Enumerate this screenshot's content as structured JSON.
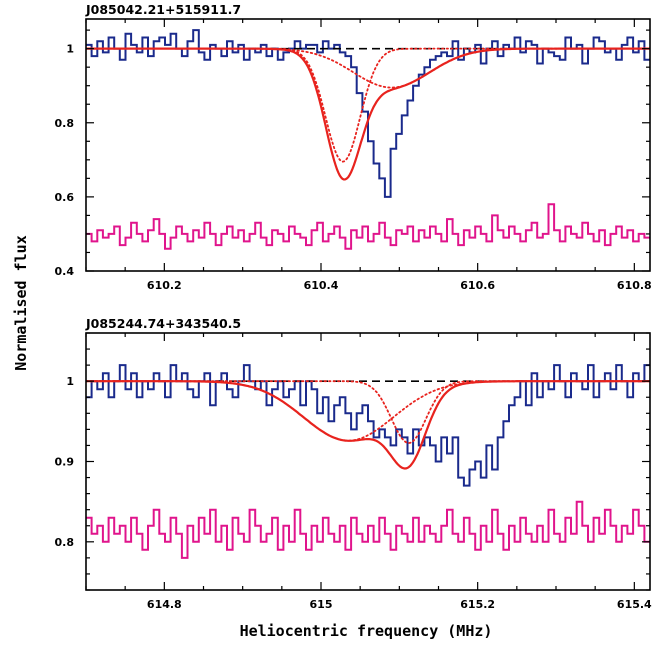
{
  "figure": {
    "ylabel": "Normalised flux",
    "xlabel": "Heliocentric frequency (MHz)"
  },
  "chart_data": [
    {
      "type": "line",
      "title": "J085042.21+515911.7",
      "xlim": [
        610.1,
        610.82
      ],
      "ylim": [
        0.4,
        1.08
      ],
      "xticks": [
        610.2,
        610.4,
        610.6,
        610.8
      ],
      "xtick_labels": [
        "610.2",
        "610.4",
        "610.6",
        "610.8"
      ],
      "yticks": [
        0.4,
        0.6,
        0.8,
        1.0
      ],
      "ytick_labels": [
        "0.4",
        "0.6",
        "0.8",
        "1"
      ],
      "continuum": 1.0,
      "colors": {
        "spectrum": "#1a2a8c",
        "residual": "#e0148c",
        "fit": "#e8231e",
        "continuum": "#000000"
      },
      "spectrum": {
        "x0": 610.1,
        "dx": 0.0072,
        "y": [
          1.01,
          0.98,
          1.02,
          0.99,
          1.03,
          1.0,
          0.97,
          1.04,
          1.01,
          0.99,
          1.03,
          0.98,
          1.02,
          1.03,
          1.01,
          1.04,
          1.0,
          0.98,
          1.02,
          1.05,
          0.99,
          0.97,
          1.01,
          1.0,
          0.98,
          1.02,
          0.99,
          1.01,
          0.97,
          1.0,
          0.99,
          1.01,
          0.98,
          1.0,
          0.97,
          0.99,
          1.0,
          1.02,
          1.0,
          1.01,
          1.01,
          0.99,
          1.02,
          1.0,
          1.01,
          0.99,
          0.98,
          0.95,
          0.88,
          0.83,
          0.75,
          0.69,
          0.65,
          0.6,
          0.73,
          0.77,
          0.82,
          0.86,
          0.9,
          0.93,
          0.95,
          0.97,
          0.98,
          0.99,
          0.98,
          1.02,
          0.97,
          1.0,
          0.99,
          1.01,
          0.96,
          1.0,
          1.02,
          0.98,
          1.01,
          1.0,
          1.03,
          0.99,
          1.02,
          1.01,
          0.96,
          1.0,
          0.99,
          0.98,
          0.97,
          1.03,
          1.0,
          1.01,
          0.96,
          1.0,
          1.03,
          1.02,
          0.99,
          1.0,
          0.97,
          1.01,
          1.03,
          0.99,
          1.02,
          0.97
        ]
      },
      "residual": {
        "x0": 610.1,
        "dx": 0.0072,
        "y": [
          0.5,
          0.48,
          0.51,
          0.49,
          0.5,
          0.52,
          0.47,
          0.49,
          0.53,
          0.5,
          0.48,
          0.51,
          0.54,
          0.5,
          0.46,
          0.49,
          0.52,
          0.5,
          0.48,
          0.51,
          0.49,
          0.53,
          0.5,
          0.47,
          0.5,
          0.52,
          0.49,
          0.51,
          0.48,
          0.5,
          0.53,
          0.49,
          0.47,
          0.51,
          0.5,
          0.48,
          0.52,
          0.5,
          0.49,
          0.47,
          0.51,
          0.53,
          0.48,
          0.5,
          0.52,
          0.49,
          0.46,
          0.51,
          0.49,
          0.52,
          0.48,
          0.5,
          0.53,
          0.49,
          0.47,
          0.51,
          0.5,
          0.52,
          0.48,
          0.51,
          0.49,
          0.52,
          0.5,
          0.48,
          0.54,
          0.5,
          0.47,
          0.51,
          0.49,
          0.52,
          0.5,
          0.48,
          0.55,
          0.51,
          0.49,
          0.52,
          0.5,
          0.48,
          0.51,
          0.53,
          0.49,
          0.5,
          0.58,
          0.51,
          0.48,
          0.52,
          0.5,
          0.49,
          0.53,
          0.5,
          0.48,
          0.51,
          0.47,
          0.5,
          0.52,
          0.49,
          0.51,
          0.48,
          0.5,
          0.49
        ]
      },
      "components": [
        {
          "center": 610.428,
          "depth": 0.305,
          "fwhm": 0.052
        },
        {
          "center": 610.49,
          "depth": 0.105,
          "fwhm": 0.115
        }
      ]
    },
    {
      "type": "line",
      "title": "J085244.74+343540.5",
      "xlim": [
        614.7,
        615.42
      ],
      "ylim": [
        0.74,
        1.06
      ],
      "xticks": [
        614.8,
        615.0,
        615.2,
        615.4
      ],
      "xtick_labels": [
        "614.8",
        "615",
        "615.2",
        "615.4"
      ],
      "yticks": [
        0.8,
        0.9,
        1.0
      ],
      "ytick_labels": [
        "0.8",
        "0.9",
        "1"
      ],
      "continuum": 1.0,
      "colors": {
        "spectrum": "#1a2a8c",
        "residual": "#e0148c",
        "fit": "#e8231e",
        "continuum": "#000000"
      },
      "spectrum": {
        "x0": 614.7,
        "dx": 0.0072,
        "y": [
          0.98,
          1.0,
          0.99,
          1.01,
          0.98,
          1.0,
          1.02,
          0.99,
          1.01,
          0.98,
          1.0,
          0.99,
          1.01,
          1.0,
          0.98,
          1.02,
          1.0,
          1.01,
          0.99,
          0.98,
          1.0,
          1.01,
          0.97,
          1.0,
          1.01,
          0.99,
          0.98,
          1.0,
          1.02,
          1.0,
          0.99,
          1.0,
          0.97,
          0.99,
          1.0,
          0.98,
          0.99,
          1.0,
          0.97,
          1.0,
          0.99,
          0.96,
          0.98,
          0.95,
          0.97,
          0.98,
          0.96,
          0.94,
          0.96,
          0.97,
          0.95,
          0.93,
          0.94,
          0.93,
          0.92,
          0.94,
          0.93,
          0.91,
          0.94,
          0.92,
          0.93,
          0.92,
          0.9,
          0.93,
          0.91,
          0.93,
          0.88,
          0.87,
          0.89,
          0.9,
          0.88,
          0.92,
          0.89,
          0.93,
          0.95,
          0.97,
          0.98,
          1.0,
          0.97,
          1.01,
          0.98,
          1.0,
          0.99,
          1.02,
          1.0,
          0.98,
          1.01,
          1.0,
          0.99,
          1.02,
          0.98,
          1.0,
          1.01,
          0.99,
          1.02,
          1.0,
          0.98,
          1.01,
          1.0,
          1.02
        ]
      },
      "residual": {
        "x0": 614.7,
        "dx": 0.0072,
        "y": [
          0.83,
          0.81,
          0.82,
          0.8,
          0.83,
          0.81,
          0.82,
          0.8,
          0.83,
          0.81,
          0.79,
          0.82,
          0.84,
          0.81,
          0.8,
          0.83,
          0.81,
          0.78,
          0.82,
          0.8,
          0.83,
          0.81,
          0.84,
          0.8,
          0.82,
          0.79,
          0.83,
          0.81,
          0.8,
          0.84,
          0.82,
          0.8,
          0.81,
          0.83,
          0.79,
          0.82,
          0.8,
          0.84,
          0.81,
          0.79,
          0.82,
          0.8,
          0.83,
          0.81,
          0.8,
          0.82,
          0.79,
          0.83,
          0.81,
          0.8,
          0.82,
          0.8,
          0.83,
          0.81,
          0.79,
          0.82,
          0.81,
          0.8,
          0.83,
          0.8,
          0.82,
          0.81,
          0.8,
          0.82,
          0.84,
          0.81,
          0.8,
          0.83,
          0.81,
          0.79,
          0.82,
          0.8,
          0.84,
          0.81,
          0.79,
          0.82,
          0.8,
          0.83,
          0.81,
          0.8,
          0.82,
          0.8,
          0.84,
          0.81,
          0.8,
          0.83,
          0.81,
          0.85,
          0.82,
          0.8,
          0.83,
          0.81,
          0.84,
          0.82,
          0.8,
          0.82,
          0.81,
          0.84,
          0.82,
          0.8
        ]
      },
      "components": [
        {
          "center": 615.035,
          "depth": 0.074,
          "fwhm": 0.135
        },
        {
          "center": 615.112,
          "depth": 0.077,
          "fwhm": 0.052
        }
      ]
    }
  ]
}
